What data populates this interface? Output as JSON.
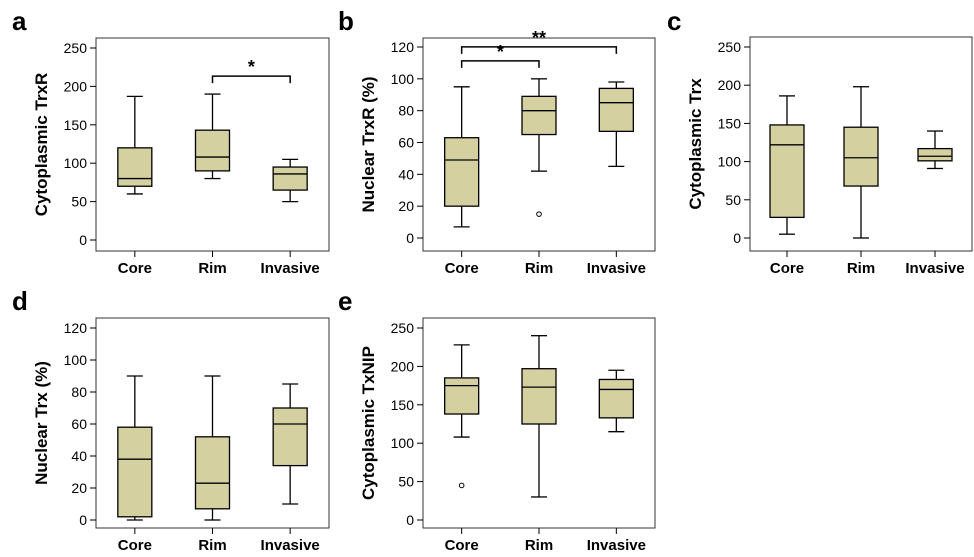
{
  "chart_data": [
    {
      "panel": "a",
      "type": "box",
      "ylabel": "Cytoplasmic TrxR",
      "ylim": [
        0,
        250
      ],
      "yticks": [
        0,
        50,
        100,
        150,
        200,
        250
      ],
      "categories": [
        "Core",
        "Rim",
        "Invasive"
      ],
      "boxes": [
        {
          "category": "Core",
          "min": 60,
          "q1": 70,
          "median": 80,
          "q3": 120,
          "max": 187,
          "outliers": []
        },
        {
          "category": "Rim",
          "min": 80,
          "q1": 90,
          "median": 108,
          "q3": 143,
          "max": 190,
          "outliers": []
        },
        {
          "category": "Invasive",
          "min": 50,
          "q1": 65,
          "median": 86,
          "q3": 95,
          "max": 105,
          "outliers": []
        }
      ],
      "significance": [
        {
          "from": "Rim",
          "to": "Invasive",
          "label": "*"
        }
      ]
    },
    {
      "panel": "b",
      "type": "box",
      "ylabel": "Nuclear TrxR (%)",
      "ylim": [
        0,
        120
      ],
      "yticks": [
        0,
        20,
        40,
        60,
        80,
        100,
        120
      ],
      "categories": [
        "Core",
        "Rim",
        "Invasive"
      ],
      "boxes": [
        {
          "category": "Core",
          "min": 7,
          "q1": 20,
          "median": 49,
          "q3": 63,
          "max": 95,
          "outliers": []
        },
        {
          "category": "Rim",
          "min": 42,
          "q1": 65,
          "median": 80,
          "q3": 89,
          "max": 100,
          "outliers": [
            15
          ]
        },
        {
          "category": "Invasive",
          "min": 45,
          "q1": 67,
          "median": 85,
          "q3": 94,
          "max": 98,
          "outliers": []
        }
      ],
      "significance": [
        {
          "from": "Core",
          "to": "Rim",
          "label": "*"
        },
        {
          "from": "Core",
          "to": "Invasive",
          "label": "**"
        }
      ]
    },
    {
      "panel": "c",
      "type": "box",
      "ylabel": "Cytoplasmic Trx",
      "ylim": [
        0,
        250
      ],
      "yticks": [
        0,
        50,
        100,
        150,
        200,
        250
      ],
      "categories": [
        "Core",
        "Rim",
        "Invasive"
      ],
      "boxes": [
        {
          "category": "Core",
          "min": 5,
          "q1": 27,
          "median": 122,
          "q3": 148,
          "max": 186,
          "outliers": []
        },
        {
          "category": "Rim",
          "min": 0,
          "q1": 68,
          "median": 105,
          "q3": 145,
          "max": 198,
          "outliers": []
        },
        {
          "category": "Invasive",
          "min": 91,
          "q1": 101,
          "median": 107,
          "q3": 117,
          "max": 140,
          "outliers": []
        }
      ],
      "significance": []
    },
    {
      "panel": "d",
      "type": "box",
      "ylabel": "Nuclear Trx (%)",
      "ylim": [
        0,
        120
      ],
      "yticks": [
        0,
        20,
        40,
        60,
        80,
        100,
        120
      ],
      "categories": [
        "Core",
        "Rim",
        "Invasive"
      ],
      "boxes": [
        {
          "category": "Core",
          "min": 0,
          "q1": 2,
          "median": 38,
          "q3": 58,
          "max": 90,
          "outliers": []
        },
        {
          "category": "Rim",
          "min": 0,
          "q1": 7,
          "median": 23,
          "q3": 52,
          "max": 90,
          "outliers": []
        },
        {
          "category": "Invasive",
          "min": 10,
          "q1": 34,
          "median": 60,
          "q3": 70,
          "max": 85,
          "outliers": []
        }
      ],
      "significance": []
    },
    {
      "panel": "e",
      "type": "box",
      "ylabel": "Cytoplasmic TxNIP",
      "ylim": [
        0,
        250
      ],
      "yticks": [
        0,
        50,
        100,
        150,
        200,
        250
      ],
      "categories": [
        "Core",
        "Rim",
        "Invasive"
      ],
      "boxes": [
        {
          "category": "Core",
          "min": 108,
          "q1": 138,
          "median": 175,
          "q3": 185,
          "max": 228,
          "outliers": [
            45
          ]
        },
        {
          "category": "Rim",
          "min": 30,
          "q1": 125,
          "median": 173,
          "q3": 197,
          "max": 240,
          "outliers": []
        },
        {
          "category": "Invasive",
          "min": 115,
          "q1": 133,
          "median": 170,
          "q3": 183,
          "max": 195,
          "outliers": []
        }
      ],
      "significance": []
    }
  ],
  "colors": {
    "box_fill": "#d5d0a0",
    "stroke": "#000000"
  }
}
